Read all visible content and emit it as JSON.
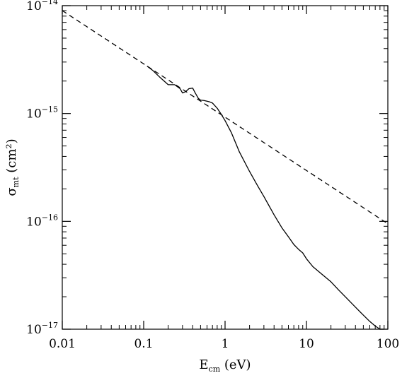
{
  "chart_data": {
    "type": "line",
    "x_scale": "log",
    "y_scale": "log",
    "xlim": [
      0.01,
      100
    ],
    "ylim": [
      1e-17,
      1e-14
    ],
    "x_ticks": [
      {
        "value": 0.01,
        "label": "0.01"
      },
      {
        "value": 0.1,
        "label": "0.1"
      },
      {
        "value": 1,
        "label": "1"
      },
      {
        "value": 10,
        "label": "10"
      },
      {
        "value": 100,
        "label": "100"
      }
    ],
    "y_ticks": [
      {
        "value": 1e-17,
        "base": "10",
        "exp": "−17"
      },
      {
        "value": 1e-16,
        "base": "10",
        "exp": "−16"
      },
      {
        "value": 1e-15,
        "base": "10",
        "exp": "−15"
      },
      {
        "value": 1e-14,
        "base": "10",
        "exp": "−14"
      }
    ],
    "xlabel": {
      "main": "E",
      "sub": "cm",
      "rest": " (eV)"
    },
    "ylabel": {
      "main": "σ",
      "sub": "mt",
      "rest": " (cm²)"
    },
    "grid": false,
    "series": [
      {
        "style": "solid",
        "x": [
          0.11,
          0.13,
          0.16,
          0.2,
          0.24,
          0.28,
          0.3,
          0.33,
          0.36,
          0.4,
          0.43,
          0.47,
          0.5,
          0.55,
          0.6,
          0.65,
          0.7,
          0.8,
          0.9,
          1.0,
          1.2,
          1.5,
          2.0,
          2.5,
          3.0,
          4.0,
          5.0,
          6.0,
          7.0,
          8.0,
          9.0,
          10.0,
          12.0,
          15.0,
          20.0,
          25.0,
          30.0,
          40.0,
          50.0,
          60.0,
          70.0,
          80.0,
          90.0
        ],
        "y": [
          2.75e-15,
          2.5e-15,
          2.15e-15,
          1.85e-15,
          1.85e-15,
          1.7e-15,
          1.55e-15,
          1.6e-15,
          1.7e-15,
          1.72e-15,
          1.55e-15,
          1.38e-15,
          1.33e-15,
          1.32e-15,
          1.3e-15,
          1.28e-15,
          1.25e-15,
          1.12e-15,
          9.8e-16,
          8.6e-16,
          6.6e-16,
          4.4e-16,
          2.9e-16,
          2.15e-16,
          1.7e-16,
          1.15e-16,
          8.7e-17,
          7.2e-17,
          6.1e-17,
          5.5e-17,
          5.1e-17,
          4.5e-17,
          3.8e-17,
          3.3e-17,
          2.75e-17,
          2.3e-17,
          2e-17,
          1.6e-17,
          1.35e-17,
          1.18e-17,
          1.07e-17,
          1e-17,
          1e-17
        ]
      },
      {
        "style": "dashed",
        "x": [
          0.01,
          100
        ],
        "y": [
          9e-15,
          9.5e-17
        ]
      }
    ]
  }
}
